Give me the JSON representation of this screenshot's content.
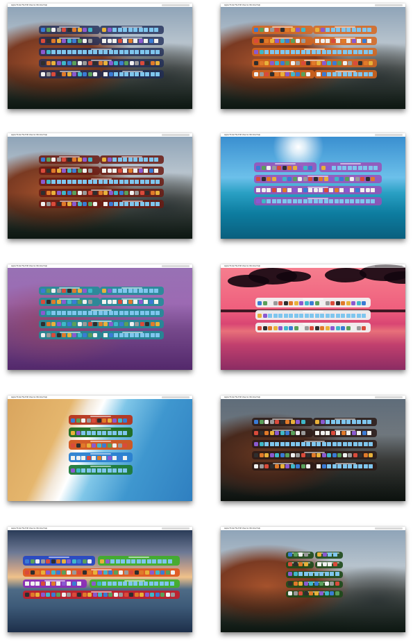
{
  "gallery": {
    "menu_text": "  Apple   Finder   File   Edit   View   Go   Window   Help",
    "items": [
      {
        "id": "shot-1",
        "wallpaper": "wp-elcap",
        "accent": "#1d2a56",
        "panel_alpha": 0.78
      },
      {
        "id": "shot-2",
        "wallpaper": "wp-elcap",
        "accent": "#d7661d",
        "panel_alpha": 0.85
      },
      {
        "id": "shot-3",
        "wallpaper": "wp-elcap",
        "accent": "#6a1a12",
        "panel_alpha": 0.85
      },
      {
        "id": "shot-4",
        "wallpaper": "wp-ocean",
        "accent": "#9b4fb7",
        "panel_alpha": 0.85
      },
      {
        "id": "shot-5",
        "wallpaper": "wp-elcap-purple",
        "accent": "#1b8f96",
        "panel_alpha": 0.85
      },
      {
        "id": "shot-6",
        "wallpaper": "wp-palms",
        "accent": "#f2f2f2",
        "panel_alpha": 0.95
      },
      {
        "id": "shot-7",
        "wallpaper": "wp-beach",
        "accent": "#b5341c",
        "panel_alpha": 0.95
      },
      {
        "id": "shot-8",
        "wallpaper": "wp-elcap-dark",
        "accent": "#2a1a16",
        "panel_alpha": 0.85
      },
      {
        "id": "shot-9",
        "wallpaper": "wp-sunset",
        "accent": "#2446c4",
        "panel_alpha": 0.92
      },
      {
        "id": "shot-10",
        "wallpaper": "wp-elcap",
        "accent": "#1e4a1a",
        "panel_alpha": 0.9
      }
    ]
  },
  "colors": {
    "folder": "#7fc6ee",
    "document": "#f2f2ee",
    "app_palette": [
      "#3a7bd5",
      "#e8b13a",
      "#d94b3b",
      "#5aa05a",
      "#8a5ad0",
      "#2e2e2e",
      "#f0f0f0",
      "#3fb8c8",
      "#e07a2a",
      "#9a9a9a"
    ]
  }
}
